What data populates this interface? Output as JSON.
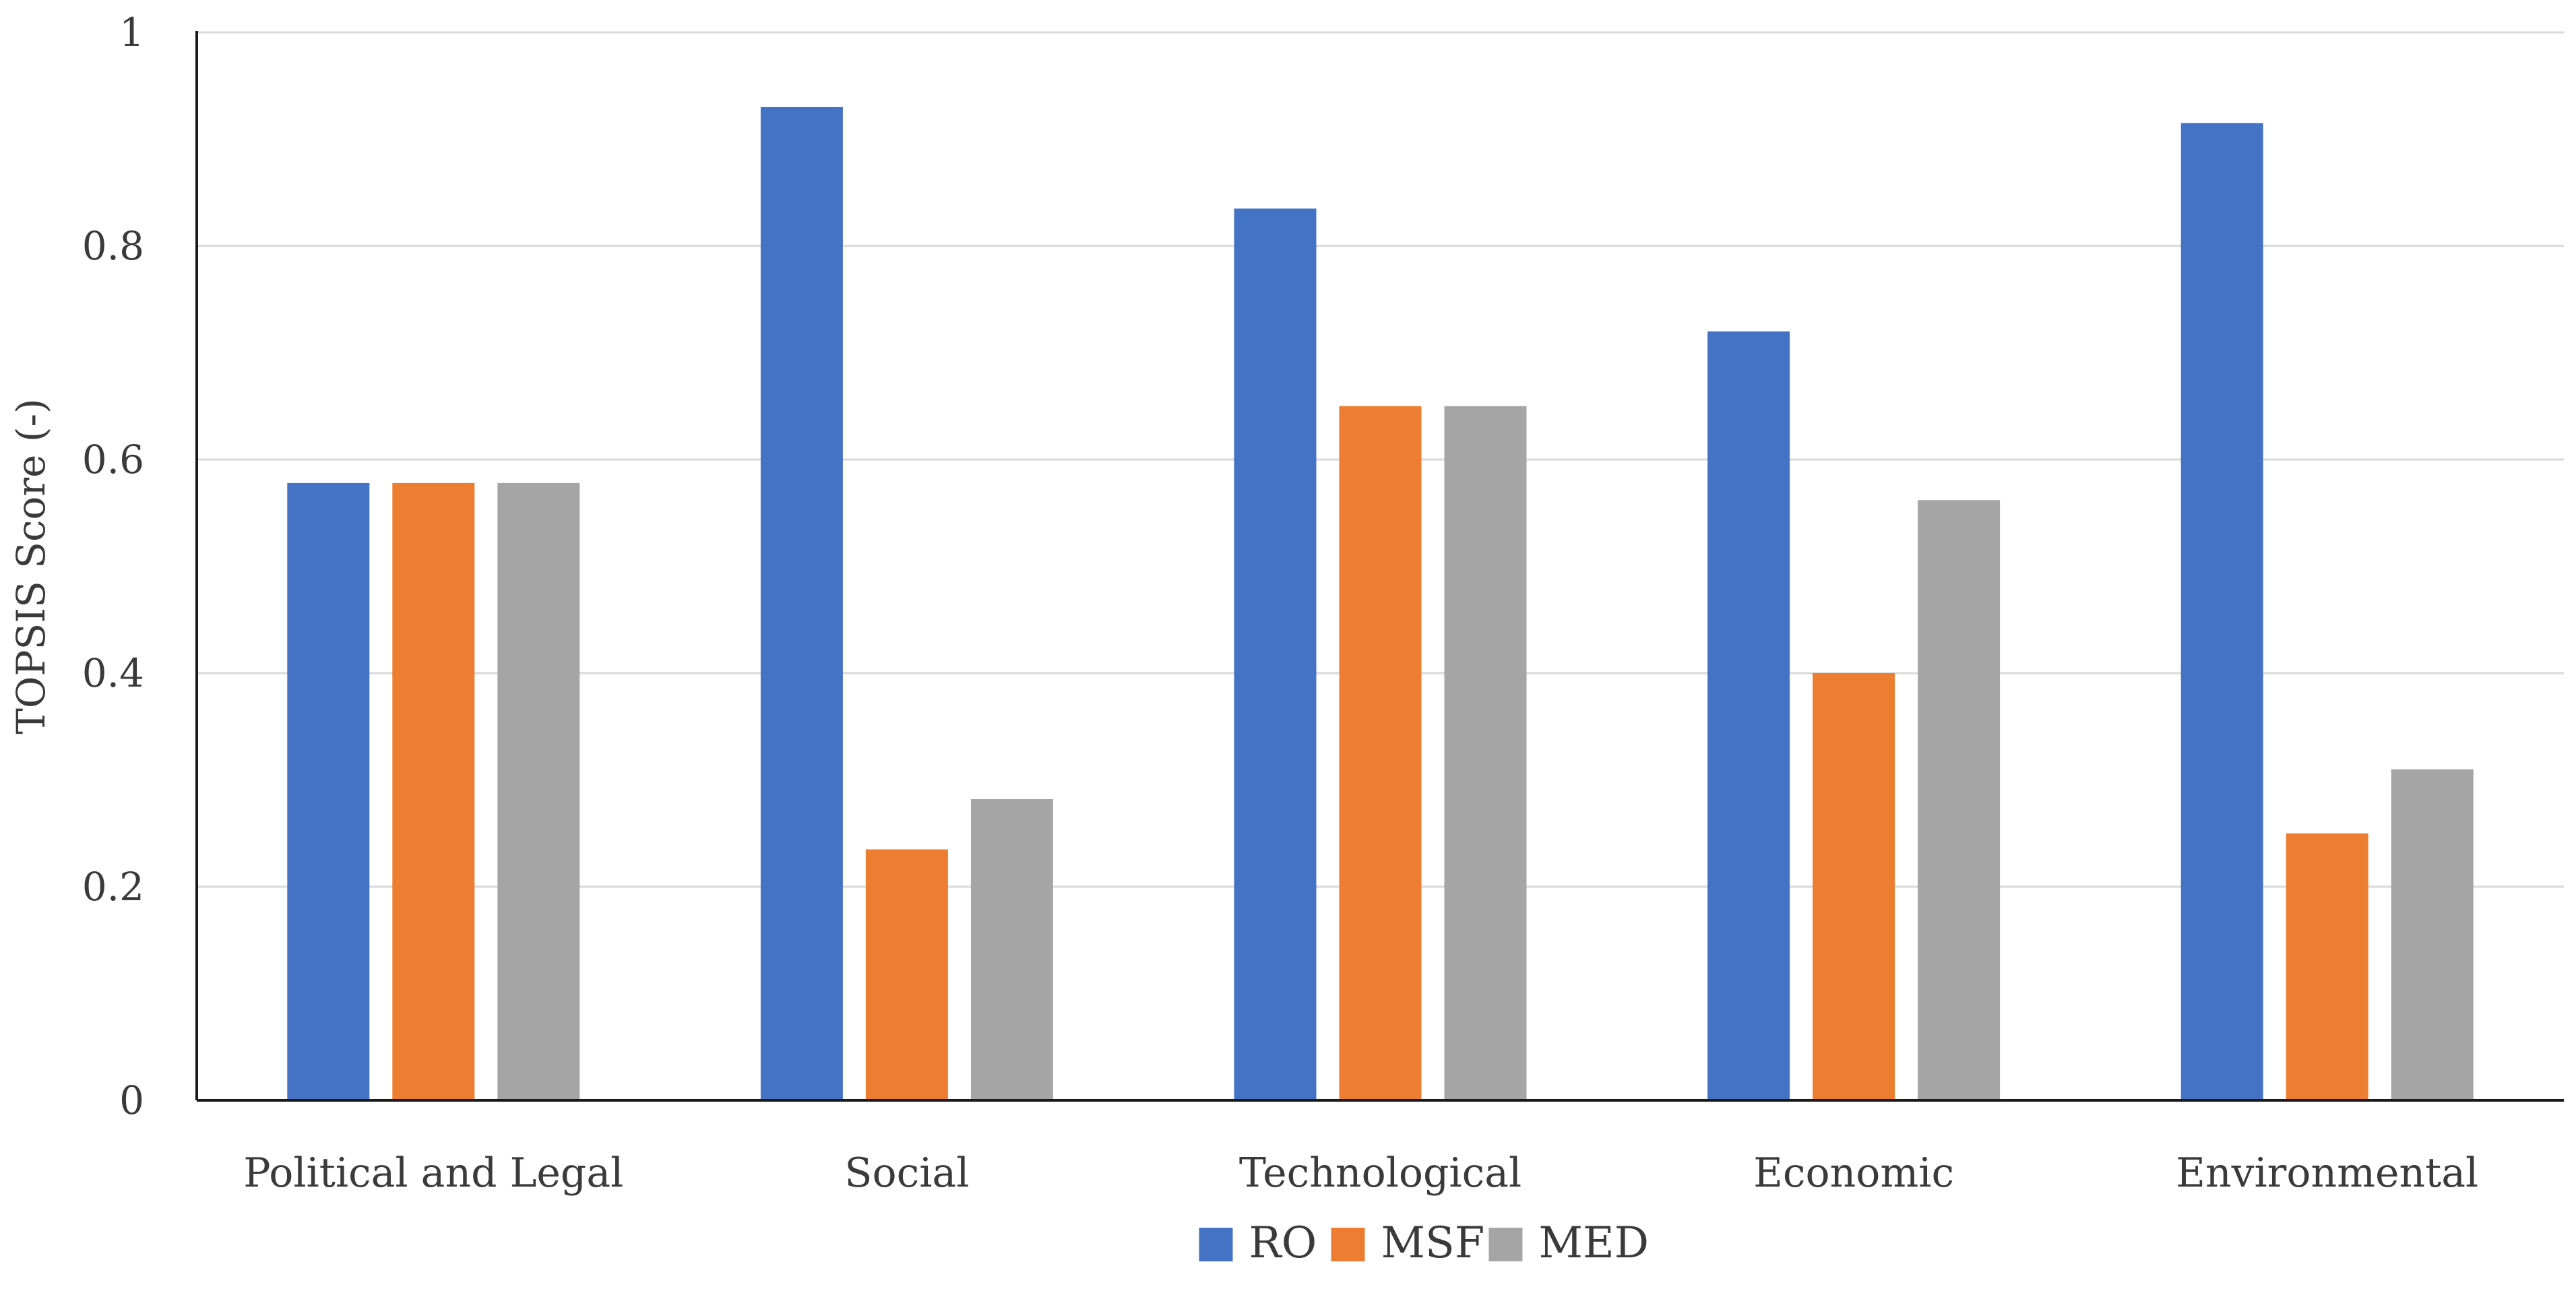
{
  "chart_data": {
    "type": "bar",
    "title": "",
    "xlabel": "",
    "ylabel": "TOPSIS Score (-)",
    "ylim": [
      0,
      1
    ],
    "yticks": [
      "0",
      "0.2",
      "0.4",
      "0.6",
      "0.8",
      "1"
    ],
    "grid": true,
    "legend_position": "bottom-center",
    "categories": [
      "Political and Legal",
      "Social",
      "Technological",
      "Economic",
      "Environmental"
    ],
    "series": [
      {
        "name": "RO",
        "color": "#4472C4",
        "values": [
          0.578,
          0.93,
          0.835,
          0.72,
          0.915
        ]
      },
      {
        "name": "MSF",
        "color": "#ED7D31",
        "values": [
          0.578,
          0.235,
          0.65,
          0.4,
          0.25
        ]
      },
      {
        "name": "MED",
        "color": "#A5A5A5",
        "values": [
          0.578,
          0.282,
          0.65,
          0.562,
          0.31
        ]
      }
    ]
  }
}
